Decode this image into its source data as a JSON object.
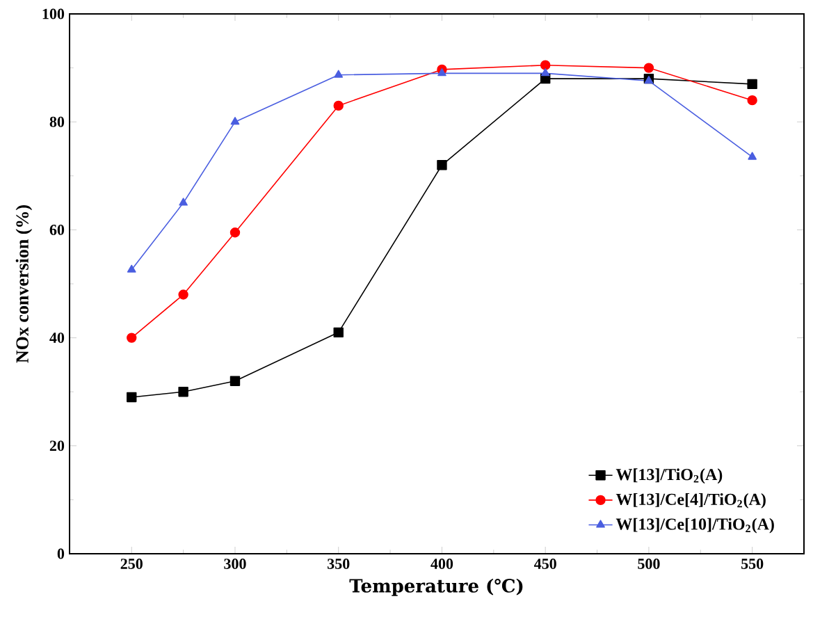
{
  "chart_data": {
    "type": "line",
    "xlabel": "Temperature (℃)",
    "ylabel": "NOx conversion (%)",
    "x": [
      250,
      275,
      300,
      350,
      400,
      450,
      500,
      550
    ],
    "series": [
      {
        "name": "W[13]/TiO$_{2}$(A)",
        "color": "#000000",
        "marker": "square",
        "values": [
          29,
          30,
          32,
          41,
          72,
          88,
          88,
          87
        ]
      },
      {
        "name": "W[13]/Ce[4]/TiO$_{2}$(A)",
        "color": "#ff0000",
        "marker": "circle",
        "values": [
          40,
          48,
          59.5,
          83,
          89.7,
          90.5,
          90,
          84
        ]
      },
      {
        "name": "W[13]/Ce[10]/TiO$_{2}$(A)",
        "color": "#4a5ee0",
        "marker": "triangle",
        "values": [
          52.6,
          65,
          80,
          88.7,
          89,
          89,
          87.6,
          73.5
        ]
      }
    ],
    "xlim": [
      220,
      575
    ],
    "ylim": [
      0,
      100
    ],
    "xticks": [
      250,
      300,
      350,
      400,
      450,
      500,
      550
    ],
    "yticks": [
      0,
      20,
      40,
      60,
      80,
      100
    ],
    "legend": "bottom right",
    "grid": false,
    "line_style": "solid"
  }
}
